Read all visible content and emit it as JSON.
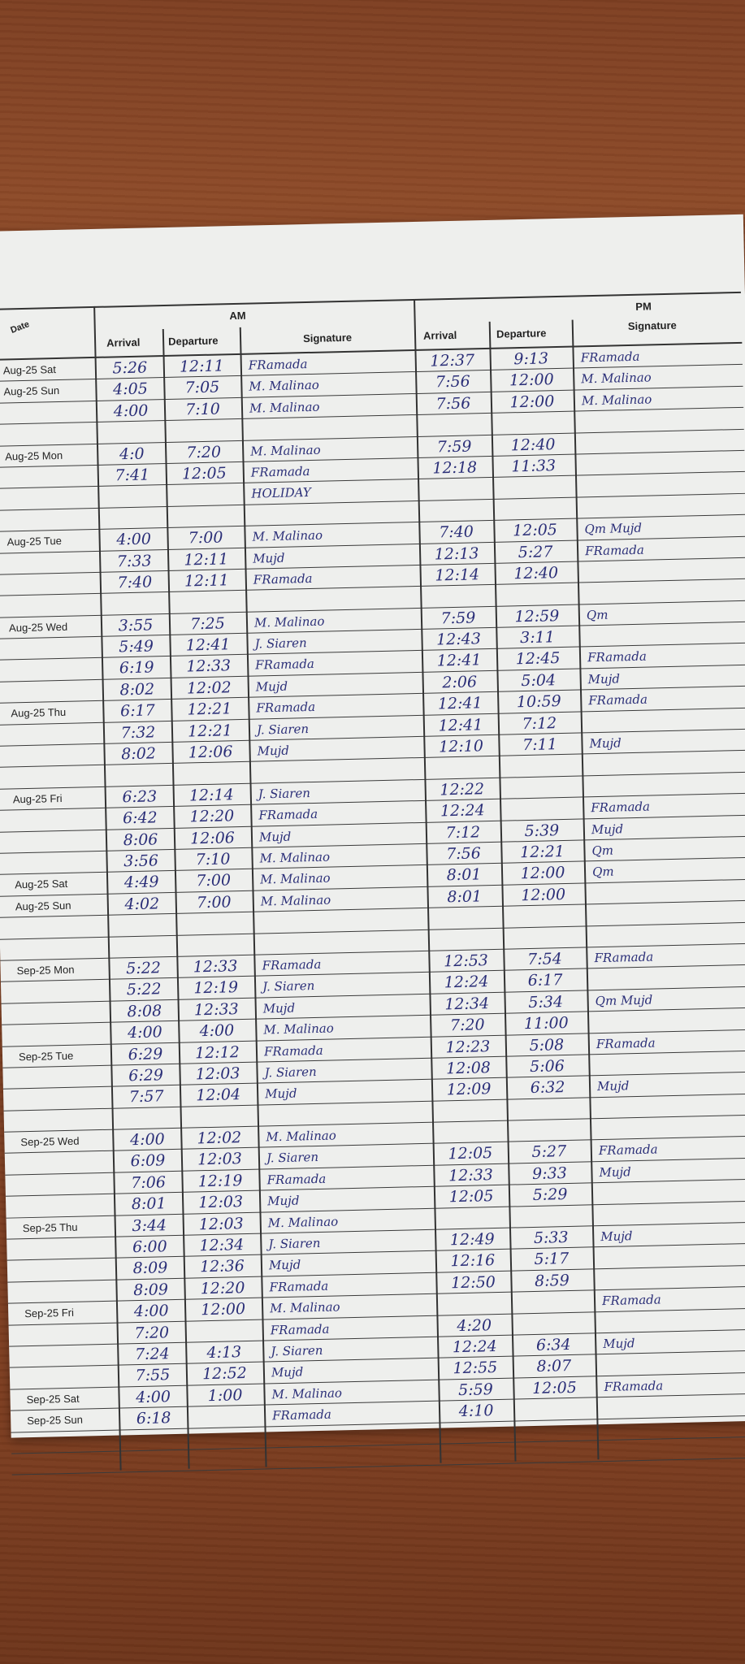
{
  "header": {
    "date": "Date",
    "am": "AM",
    "pm": "PM",
    "arrival": "Arrival",
    "departure": "Departure",
    "signature": "Signature"
  },
  "ink_color": "#2b2f78",
  "rows": [
    [
      "Aug-25 Sat",
      "5:26",
      "12:11",
      "FRamada",
      "12:37",
      "9:13",
      "FRamada"
    ],
    [
      "Aug-25 Sun",
      "4:05",
      "7:05",
      "M. Malinao",
      "7:56",
      "12:00",
      "M. Malinao"
    ],
    [
      "",
      "4:00",
      "7:10",
      "M. Malinao",
      "7:56",
      "12:00",
      "M. Malinao"
    ],
    [
      "",
      "",
      "",
      "",
      "",
      "",
      ""
    ],
    [
      "Aug-25 Mon",
      "4:0",
      "7:20",
      "M. Malinao",
      "7:59",
      "12:40",
      ""
    ],
    [
      "",
      "7:41",
      "12:05",
      "FRamada",
      "12:18",
      "11:33",
      ""
    ],
    [
      "",
      "",
      "",
      "HOLIDAY",
      "",
      "",
      ""
    ],
    [
      "",
      "",
      "",
      "",
      "",
      "",
      ""
    ],
    [
      "Aug-25 Tue",
      "4:00",
      "7:00",
      "M. Malinao",
      "7:40",
      "12:05",
      "Qm Mujd"
    ],
    [
      "",
      "7:33",
      "12:11",
      "Mujd",
      "12:13",
      "5:27",
      "FRamada"
    ],
    [
      "",
      "7:40",
      "12:11",
      "FRamada",
      "12:14",
      "12:40",
      ""
    ],
    [
      "",
      "",
      "",
      "",
      "",
      "",
      ""
    ],
    [
      "Aug-25 Wed",
      "3:55",
      "7:25",
      "M. Malinao",
      "7:59",
      "12:59",
      "Qm"
    ],
    [
      "",
      "5:49",
      "12:41",
      "J. Siaren",
      "12:43",
      "3:11",
      ""
    ],
    [
      "",
      "6:19",
      "12:33",
      "FRamada",
      "12:41",
      "12:45",
      "FRamada"
    ],
    [
      "",
      "8:02",
      "12:02",
      "Mujd",
      "2:06",
      "5:04",
      "Mujd"
    ],
    [
      "Aug-25 Thu",
      "6:17",
      "12:21",
      "FRamada",
      "12:41",
      "10:59",
      "FRamada"
    ],
    [
      "",
      "7:32",
      "12:21",
      "J. Siaren",
      "12:41",
      "7:12",
      ""
    ],
    [
      "",
      "8:02",
      "12:06",
      "Mujd",
      "12:10",
      "7:11",
      "Mujd"
    ],
    [
      "",
      "",
      "",
      "",
      "",
      "",
      ""
    ],
    [
      "Aug-25 Fri",
      "6:23",
      "12:14",
      "J. Siaren",
      "12:22",
      "",
      ""
    ],
    [
      "",
      "6:42",
      "12:20",
      "FRamada",
      "12:24",
      "",
      "FRamada"
    ],
    [
      "",
      "8:06",
      "12:06",
      "Mujd",
      "7:12",
      "5:39",
      "Mujd"
    ],
    [
      "",
      "3:56",
      "7:10",
      "M. Malinao",
      "7:56",
      "12:21",
      "Qm"
    ],
    [
      "Aug-25 Sat",
      "4:49",
      "7:00",
      "M. Malinao",
      "8:01",
      "12:00",
      "Qm"
    ],
    [
      "Aug-25 Sun",
      "4:02",
      "7:00",
      "M. Malinao",
      "8:01",
      "12:00",
      ""
    ],
    [
      "",
      "",
      "",
      "",
      "",
      "",
      ""
    ],
    [
      "",
      "",
      "",
      "",
      "",
      "",
      ""
    ],
    [
      "Sep-25 Mon",
      "5:22",
      "12:33",
      "FRamada",
      "12:53",
      "7:54",
      "FRamada"
    ],
    [
      "",
      "5:22",
      "12:19",
      "J. Siaren",
      "12:24",
      "6:17",
      ""
    ],
    [
      "",
      "8:08",
      "12:33",
      "Mujd",
      "12:34",
      "5:34",
      "Qm Mujd"
    ],
    [
      "",
      "4:00",
      "4:00",
      "M. Malinao",
      "7:20",
      "11:00",
      ""
    ],
    [
      "Sep-25 Tue",
      "6:29",
      "12:12",
      "FRamada",
      "12:23",
      "5:08",
      "FRamada"
    ],
    [
      "",
      "6:29",
      "12:03",
      "J. Siaren",
      "12:08",
      "5:06",
      ""
    ],
    [
      "",
      "7:57",
      "12:04",
      "Mujd",
      "12:09",
      "6:32",
      "Mujd"
    ],
    [
      "",
      "",
      "",
      "",
      "",
      "",
      ""
    ],
    [
      "Sep-25 Wed",
      "4:00",
      "12:02",
      "M. Malinao",
      "",
      "",
      ""
    ],
    [
      "",
      "6:09",
      "12:03",
      "J. Siaren",
      "12:05",
      "5:27",
      "FRamada"
    ],
    [
      "",
      "7:06",
      "12:19",
      "FRamada",
      "12:33",
      "9:33",
      "Mujd"
    ],
    [
      "",
      "8:01",
      "12:03",
      "Mujd",
      "12:05",
      "5:29",
      ""
    ],
    [
      "Sep-25 Thu",
      "3:44",
      "12:03",
      "M. Malinao",
      "",
      "",
      ""
    ],
    [
      "",
      "6:00",
      "12:34",
      "J. Siaren",
      "12:49",
      "5:33",
      "Mujd"
    ],
    [
      "",
      "8:09",
      "12:36",
      "Mujd",
      "12:16",
      "5:17",
      ""
    ],
    [
      "",
      "8:09",
      "12:20",
      "FRamada",
      "12:50",
      "8:59",
      ""
    ],
    [
      "Sep-25 Fri",
      "4:00",
      "12:00",
      "M. Malinao",
      "",
      "",
      "FRamada"
    ],
    [
      "",
      "7:20",
      "",
      "FRamada",
      "4:20",
      "",
      ""
    ],
    [
      "",
      "7:24",
      "4:13",
      "J. Siaren",
      "12:24",
      "6:34",
      "Mujd"
    ],
    [
      "",
      "7:55",
      "12:52",
      "Mujd",
      "12:55",
      "8:07",
      ""
    ],
    [
      "Sep-25 Sat",
      "4:00",
      "1:00",
      "M. Malinao",
      "5:59",
      "12:05",
      "FRamada"
    ],
    [
      "Sep-25 Sun",
      "6:18",
      "",
      "FRamada",
      "4:10",
      "",
      ""
    ],
    [
      "",
      "",
      "",
      "",
      "",
      "",
      ""
    ],
    [
      "",
      "",
      "",
      "",
      "",
      "",
      ""
    ]
  ]
}
